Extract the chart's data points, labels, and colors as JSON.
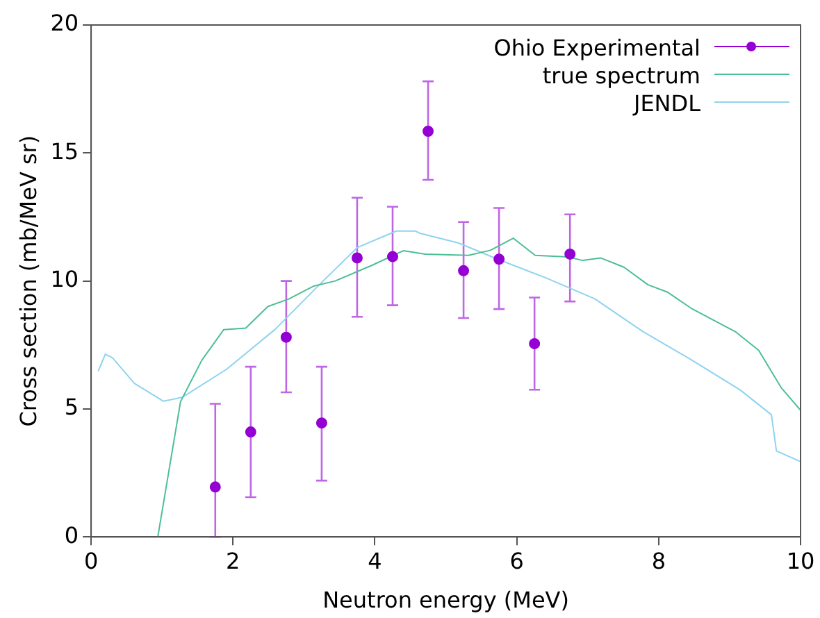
{
  "chart_data": {
    "type": "line",
    "xlabel": "Neutron energy (MeV)",
    "ylabel": "Cross section (mb/MeV sr)",
    "xlim": [
      0,
      10
    ],
    "xticks": [
      0,
      2,
      4,
      6,
      8,
      10
    ],
    "ylim": [
      0,
      20
    ],
    "yticks": [
      0,
      5,
      10,
      15,
      20
    ],
    "grid": false,
    "legend": "top right",
    "series": [
      {
        "name": "Ohio Experimental",
        "type": "scatter",
        "marker": "circle",
        "color": "#9400d3",
        "x": [
          1.75,
          2.25,
          2.75,
          3.25,
          3.75,
          4.25,
          4.75,
          5.25,
          5.75,
          6.25,
          6.75
        ],
        "values": [
          1.95,
          4.1,
          7.8,
          4.45,
          10.9,
          10.95,
          15.85,
          10.4,
          10.85,
          7.55,
          11.05
        ],
        "errors": [
          [
            0,
            5.2
          ],
          [
            1.55,
            6.65
          ],
          [
            5.65,
            10.0
          ],
          [
            2.2,
            6.65
          ],
          [
            8.6,
            13.25
          ],
          [
            9.05,
            12.9
          ],
          [
            13.95,
            17.8
          ],
          [
            8.55,
            12.3
          ],
          [
            8.9,
            12.85
          ],
          [
            5.75,
            9.35
          ],
          [
            9.2,
            12.6
          ]
        ]
      },
      {
        "name": "true spectrum",
        "type": "line",
        "marker": "none",
        "color": "#4cbf94",
        "x": [
          0.94,
          1.26,
          1.56,
          1.87,
          2.18,
          2.49,
          2.79,
          3.14,
          3.44,
          3.95,
          4.4,
          4.71,
          5.32,
          5.63,
          5.95,
          6.26,
          6.72,
          6.93,
          7.18,
          7.51,
          7.85,
          8.12,
          8.46,
          9.08,
          9.41,
          9.73,
          10.0
        ],
        "values": [
          0,
          5.28,
          6.9,
          8.1,
          8.16,
          9.0,
          9.3,
          9.8,
          10.0,
          10.6,
          11.18,
          11.05,
          11.0,
          11.2,
          11.67,
          11.0,
          10.94,
          10.8,
          10.9,
          10.54,
          9.85,
          9.57,
          8.93,
          8.02,
          7.29,
          5.82,
          4.95
        ]
      },
      {
        "name": "JENDL",
        "type": "line",
        "marker": "none",
        "color": "#8fd3f0",
        "x": [
          0.1,
          0.2,
          0.3,
          0.61,
          1.02,
          1.29,
          1.91,
          2.59,
          3.27,
          3.75,
          4.3,
          4.57,
          4.64,
          5.18,
          5.73,
          6.41,
          7.1,
          7.78,
          8.46,
          9.15,
          9.59,
          9.66,
          10.0
        ],
        "values": [
          6.47,
          7.14,
          7.0,
          6.0,
          5.3,
          5.46,
          6.55,
          8.1,
          10.0,
          11.3,
          11.95,
          11.95,
          11.86,
          11.48,
          10.85,
          10.12,
          9.3,
          8.02,
          6.92,
          5.74,
          4.77,
          3.36,
          2.94
        ]
      }
    ]
  }
}
